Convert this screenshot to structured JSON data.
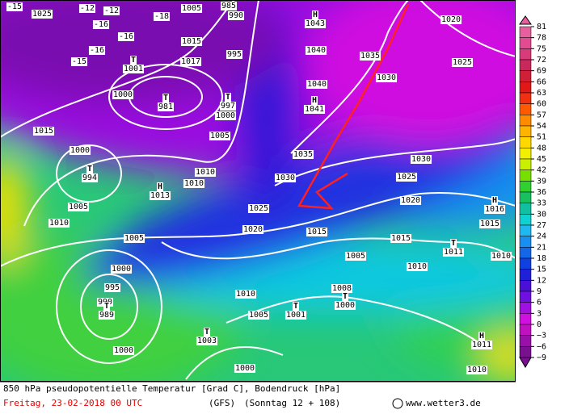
{
  "map": {
    "isobar_labels": [
      "1025",
      "1005",
      "985",
      "990",
      "1020",
      "1040",
      "1035",
      "1025",
      "1030",
      "1040",
      "1015",
      "995",
      "1000",
      "1017",
      "1000",
      "1005",
      "1015",
      "1000",
      "1005",
      "1010",
      "1010",
      "1010",
      "1035",
      "1030",
      "1030",
      "1025",
      "1020",
      "1015",
      "1025",
      "1020",
      "1015",
      "1015",
      "1005",
      "1000",
      "995",
      "990",
      "1010",
      "1005",
      "1005",
      "1010",
      "1010",
      "1008",
      "1000",
      "1000",
      "1010"
    ],
    "pressure_centers": [
      {
        "symbol": "H",
        "pressure": "1043"
      },
      {
        "symbol": "H",
        "pressure": "1041"
      },
      {
        "symbol": "T",
        "pressure": "1001"
      },
      {
        "symbol": "T",
        "pressure": "981"
      },
      {
        "symbol": "T",
        "pressure": "997"
      },
      {
        "symbol": "T",
        "pressure": "994"
      },
      {
        "symbol": "H",
        "pressure": "1013"
      },
      {
        "symbol": "H",
        "pressure": "1016"
      },
      {
        "symbol": "T",
        "pressure": "989"
      },
      {
        "symbol": "T",
        "pressure": "1011"
      },
      {
        "symbol": "T",
        "pressure": "1000"
      },
      {
        "symbol": "T",
        "pressure": "1001"
      },
      {
        "symbol": "T",
        "pressure": "1003"
      },
      {
        "symbol": "H",
        "pressure": "1011"
      }
    ],
    "temperature_labels": [
      "-15",
      "-12",
      "-12",
      "-16",
      "-18",
      "-16",
      "-16",
      "-15"
    ]
  },
  "colorbar": {
    "ticks": [
      81,
      78,
      75,
      72,
      69,
      66,
      63,
      60,
      57,
      54,
      51,
      48,
      45,
      42,
      39,
      36,
      33,
      30,
      27,
      24,
      21,
      18,
      15,
      12,
      9,
      6,
      3,
      0,
      {
        "value": -3,
        "label": "−3"
      },
      {
        "value": -6,
        "label": "−6"
      },
      {
        "value": -9,
        "label": "−9"
      }
    ],
    "colors": [
      "#e6609e",
      "#e24a92",
      "#d83a7a",
      "#c8285a",
      "#d02038",
      "#e01818",
      "#f03010",
      "#ff5a00",
      "#ff8c00",
      "#ffb400",
      "#ffd800",
      "#f0f000",
      "#c8f000",
      "#78e000",
      "#30d030",
      "#18c060",
      "#10c0a0",
      "#10d0d0",
      "#20b8f0",
      "#1890f0",
      "#1468e8",
      "#1040e0",
      "#2020d8",
      "#4a10d8",
      "#7010e0",
      "#a010e0",
      "#d010e0",
      "#c010c0",
      "#9810a8",
      "#781090"
    ]
  },
  "caption": {
    "title": "850 hPa pseudopotentielle Temperatur [Grad C], Bodendruck [hPa]",
    "date": "Freitag, 23-02-2018  00 UTC",
    "model": "(GFS)",
    "run": "(Sonntag 12 + 108)",
    "credit": "www.wetter3.de"
  }
}
